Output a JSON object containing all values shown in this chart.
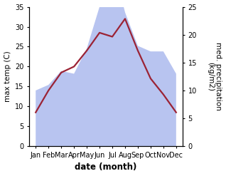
{
  "months": [
    "Jan",
    "Feb",
    "Mar",
    "Apr",
    "May",
    "Jun",
    "Jul",
    "Aug",
    "Sep",
    "Oct",
    "Nov",
    "Dec"
  ],
  "temperature": [
    8.5,
    14.0,
    18.5,
    20.0,
    24.0,
    28.5,
    27.5,
    32.0,
    24.0,
    17.0,
    13.0,
    8.5
  ],
  "precipitation": [
    10,
    11,
    13.5,
    13,
    17.5,
    25,
    33,
    24,
    18,
    17,
    17,
    13
  ],
  "temp_color": "#9b2335",
  "precip_color": "#b8c4f0",
  "ylabel_left": "max temp (C)",
  "ylabel_right": "med. precipitation\n(kg/m2)",
  "xlabel": "date (month)",
  "ylim_left": [
    0,
    35
  ],
  "ylim_right": [
    0,
    25
  ],
  "yticks_left": [
    0,
    5,
    10,
    15,
    20,
    25,
    30,
    35
  ],
  "yticks_right": [
    0,
    5,
    10,
    15,
    20,
    25
  ],
  "precip_scale_factor": 1.4,
  "bg_color": "#ffffff",
  "temp_linewidth": 1.6,
  "xlabel_fontsize": 8.5,
  "ylabel_fontsize": 7.5,
  "tick_fontsize": 7
}
